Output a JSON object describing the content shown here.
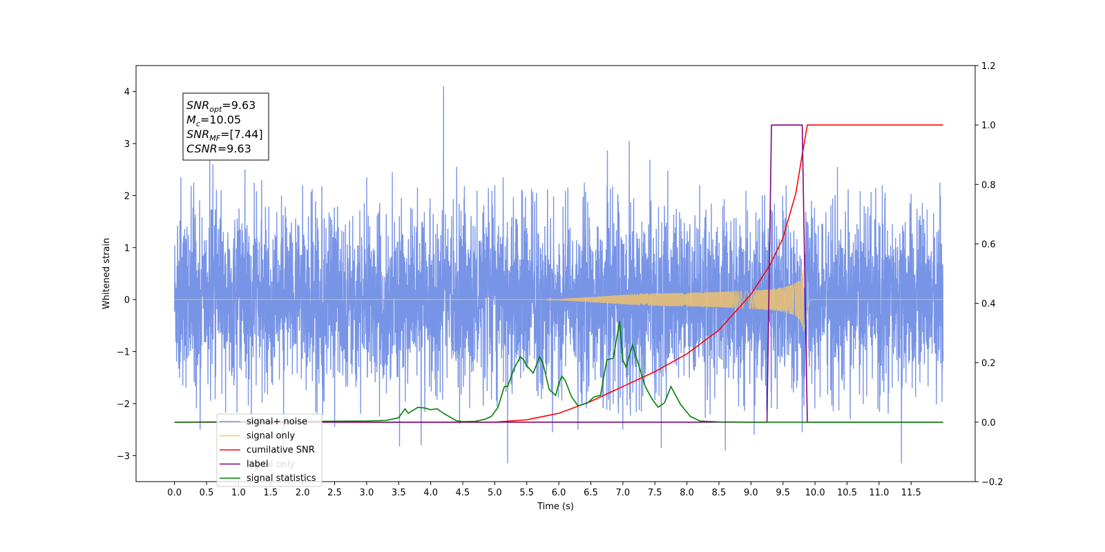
{
  "chart_data": {
    "type": "line",
    "xlabel": "Time (s)",
    "ylabel": "Whitened strain",
    "xlim": [
      -0.6,
      12.5
    ],
    "ylim_left": [
      -3.5,
      4.5
    ],
    "ylim_right": [
      -0.2,
      1.2
    ],
    "x_ticks": [
      0.0,
      0.5,
      1.0,
      1.5,
      2.0,
      2.5,
      3.0,
      3.5,
      4.0,
      4.5,
      5.0,
      5.5,
      6.0,
      6.5,
      7.0,
      7.5,
      8.0,
      8.5,
      9.0,
      9.5,
      10.0,
      10.5,
      11.0,
      11.5
    ],
    "x_tick_labels": [
      "0.0",
      "0.5",
      "1.0",
      "1.5",
      "2.0",
      "2.5",
      "3.0",
      "3.5",
      "4.0",
      "4.5",
      "5.0",
      "5.5",
      "6.0",
      "6.5",
      "7.0",
      "7.5",
      "8.0",
      "8.5",
      "9.0",
      "9.5",
      "10.0",
      "10.5",
      "11.0",
      "11.5"
    ],
    "y_ticks_left": [
      -3,
      -2,
      -1,
      0,
      1,
      2,
      3,
      4
    ],
    "y_tick_labels_left": [
      "−3",
      "−2",
      "−1",
      "0",
      "1",
      "2",
      "3",
      "4"
    ],
    "y_ticks_right": [
      -0.2,
      0.0,
      0.2,
      0.4,
      0.6,
      0.8,
      1.0,
      1.2
    ],
    "y_tick_labels_right": [
      "−0.2",
      "0.0",
      "0.2",
      "0.4",
      "0.6",
      "0.8",
      "1.0",
      "1.2"
    ],
    "grid": false,
    "legend_placement": "lower-left",
    "legend": [
      {
        "label": "signal+ noise",
        "color": "#7894e6"
      },
      {
        "label": "signal only",
        "color": "#fcc860"
      },
      {
        "label": "cumilative SNR",
        "color": "#ff0000"
      },
      {
        "label": "label",
        "color": "#800080"
      },
      {
        "label": "signal statistics",
        "color": "#008000"
      }
    ],
    "hidden_legend_text": "signal only",
    "annotation": {
      "lines": [
        {
          "main": "SNR",
          "sub": "opt",
          "rest": "=9.63"
        },
        {
          "main": "M",
          "sub": "c",
          "rest": "=10.05"
        },
        {
          "main": "SNR",
          "sub": "MF",
          "rest": "=[7.44]"
        },
        {
          "main": "CSNR",
          "sub": "",
          "rest": "=9.63"
        }
      ]
    },
    "series": [
      {
        "name": "signal+ noise",
        "axis": "left",
        "color": "#7894e6",
        "x_range": [
          0.0,
          12.0
        ],
        "envelope_max": 1.4,
        "spikes": [
          {
            "x": 0.05,
            "y": 1.3
          },
          {
            "x": 0.08,
            "y": -1.5
          },
          {
            "x": 0.1,
            "y": 2.35
          },
          {
            "x": 0.3,
            "y": 2.25
          },
          {
            "x": 0.4,
            "y": -2.5
          },
          {
            "x": 0.55,
            "y": 2.7
          },
          {
            "x": 0.6,
            "y": 2.6
          },
          {
            "x": 1.1,
            "y": 2.5
          },
          {
            "x": 1.2,
            "y": -2.4
          },
          {
            "x": 2.0,
            "y": 2.2
          },
          {
            "x": 2.5,
            "y": -2.45
          },
          {
            "x": 3.0,
            "y": 2.35
          },
          {
            "x": 3.4,
            "y": 2.45
          },
          {
            "x": 3.85,
            "y": -2.8
          },
          {
            "x": 4.2,
            "y": 4.1
          },
          {
            "x": 4.45,
            "y": -2.4
          },
          {
            "x": 5.0,
            "y": 2.2
          },
          {
            "x": 5.2,
            "y": -3.15
          },
          {
            "x": 5.65,
            "y": 2.05
          },
          {
            "x": 5.9,
            "y": -2.55
          },
          {
            "x": 6.3,
            "y": 2.2
          },
          {
            "x": 6.3,
            "y": -2.5
          },
          {
            "x": 6.4,
            "y": 2.25
          },
          {
            "x": 7.0,
            "y": -2.5
          },
          {
            "x": 7.1,
            "y": 3.05
          },
          {
            "x": 7.6,
            "y": -2.85
          },
          {
            "x": 8.2,
            "y": 2.2
          },
          {
            "x": 8.6,
            "y": -2.9
          },
          {
            "x": 9.05,
            "y": -2.6
          },
          {
            "x": 9.55,
            "y": 2.2
          },
          {
            "x": 9.8,
            "y": -2.55
          },
          {
            "x": 10.35,
            "y": 2.55
          },
          {
            "x": 10.55,
            "y": -2.3
          },
          {
            "x": 11.05,
            "y": 2.2
          },
          {
            "x": 11.35,
            "y": -3.15
          },
          {
            "x": 11.95,
            "y": 2.25
          }
        ]
      },
      {
        "name": "signal only",
        "axis": "left",
        "color": "#fcc860",
        "chirp": {
          "start_x": 5.8,
          "end_x": 9.82,
          "end_amplitude": 0.65,
          "base_level": 0.0
        }
      },
      {
        "name": "cumilative SNR",
        "axis": "right",
        "color": "#ff0000",
        "x": [
          0.0,
          5.0,
          5.5,
          6.0,
          6.5,
          7.0,
          7.5,
          8.0,
          8.5,
          9.0,
          9.3,
          9.5,
          9.7,
          9.8,
          9.88,
          12.0
        ],
        "y": [
          0.0,
          0.0,
          0.008,
          0.03,
          0.07,
          0.12,
          0.17,
          0.23,
          0.31,
          0.43,
          0.53,
          0.62,
          0.77,
          0.9,
          1.0,
          1.0
        ]
      },
      {
        "name": "label",
        "axis": "right",
        "color": "#800080",
        "x": [
          0.0,
          9.25,
          9.32,
          9.8,
          9.88,
          12.0
        ],
        "y": [
          0.0,
          0.0,
          1.0,
          1.0,
          0.0,
          0.0
        ]
      },
      {
        "name": "signal statistics",
        "axis": "right",
        "color": "#008000",
        "x": [
          0.0,
          3.0,
          3.3,
          3.5,
          3.6,
          3.65,
          3.8,
          3.9,
          4.0,
          4.1,
          4.2,
          4.4,
          4.5,
          4.7,
          4.85,
          4.95,
          5.05,
          5.15,
          5.2,
          5.3,
          5.4,
          5.45,
          5.5,
          5.6,
          5.7,
          5.75,
          5.85,
          5.95,
          6.0,
          6.05,
          6.1,
          6.2,
          6.3,
          6.45,
          6.55,
          6.65,
          6.75,
          6.85,
          6.95,
          7.0,
          7.05,
          7.15,
          7.25,
          7.35,
          7.45,
          7.55,
          7.65,
          7.75,
          7.9,
          8.05,
          8.2,
          8.5,
          9.0,
          12.0
        ],
        "y": [
          0.0,
          0.004,
          0.006,
          0.015,
          0.045,
          0.03,
          0.05,
          0.048,
          0.042,
          0.045,
          0.03,
          0.005,
          0.002,
          0.003,
          0.01,
          0.02,
          0.05,
          0.12,
          0.12,
          0.18,
          0.22,
          0.21,
          0.19,
          0.165,
          0.22,
          0.2,
          0.11,
          0.09,
          0.13,
          0.155,
          0.14,
          0.085,
          0.055,
          0.065,
          0.085,
          0.09,
          0.21,
          0.215,
          0.34,
          0.21,
          0.185,
          0.26,
          0.19,
          0.12,
          0.08,
          0.05,
          0.065,
          0.12,
          0.06,
          0.02,
          0.004,
          0.001,
          0.0,
          0.0
        ]
      }
    ]
  }
}
